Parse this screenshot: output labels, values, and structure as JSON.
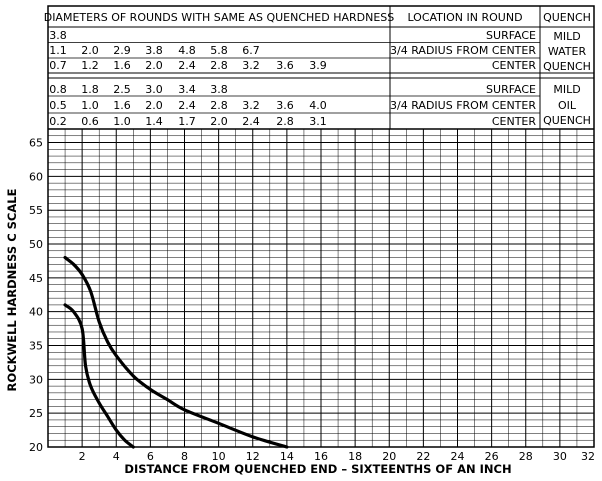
{
  "table": {
    "headers": {
      "diameters": "DIAMETERS OF ROUNDS WITH SAME AS QUENCHED HARDNESS",
      "location": "LOCATION IN ROUND",
      "quench": "QUENCH"
    },
    "groups": [
      {
        "quench_lines": [
          "MILD",
          "WATER",
          "QUENCH"
        ],
        "rows": [
          {
            "values": [
              "3.8"
            ],
            "location": "SURFACE"
          },
          {
            "values": [
              "1.1",
              "2.0",
              "2.9",
              "3.8",
              "4.8",
              "5.8",
              "6.7"
            ],
            "location": "3/4 RADIUS FROM CENTER"
          },
          {
            "values": [
              "0.7",
              "1.2",
              "1.6",
              "2.0",
              "2.4",
              "2.8",
              "3.2",
              "3.6",
              "3.9"
            ],
            "location": "CENTER"
          }
        ]
      },
      {
        "quench_lines": [
          "MILD",
          "OIL",
          "QUENCH"
        ],
        "rows": [
          {
            "values": [
              "0.8",
              "1.8",
              "2.5",
              "3.0",
              "3.4",
              "3.8"
            ],
            "location": "SURFACE"
          },
          {
            "values": [
              "0.5",
              "1.0",
              "1.6",
              "2.0",
              "2.4",
              "2.8",
              "3.2",
              "3.6",
              "4.0"
            ],
            "location": "3/4 RADIUS FROM CENTER"
          },
          {
            "values": [
              "0.2",
              "0.6",
              "1.0",
              "1.4",
              "1.7",
              "2.0",
              "2.4",
              "2.8",
              "3.1"
            ],
            "location": "CENTER"
          }
        ]
      }
    ]
  },
  "chart_data": {
    "type": "line",
    "xlabel": "DISTANCE FROM QUENCHED END – SIXTEENTHS OF AN INCH",
    "ylabel": "ROCKWELL HARDNESS C SCALE",
    "xlim": [
      0,
      32
    ],
    "ylim": [
      20,
      67
    ],
    "x_ticks": [
      "2",
      "4",
      "6",
      "8",
      "10",
      "12",
      "14",
      "16",
      "18",
      "20",
      "22",
      "24",
      "26",
      "28",
      "30",
      "32"
    ],
    "y_ticks": [
      "20",
      "25",
      "30",
      "35",
      "40",
      "45",
      "50",
      "55",
      "60",
      "65"
    ],
    "grid": true,
    "series": [
      {
        "x": [
          1,
          1.5,
          2,
          2.5,
          3,
          3.5,
          4,
          5,
          6,
          7,
          8,
          10,
          12,
          14
        ],
        "y": [
          48,
          47,
          45.5,
          43,
          38.5,
          35.5,
          33.5,
          30.5,
          28.5,
          27,
          25.5,
          23.5,
          21.5,
          20
        ]
      },
      {
        "x": [
          1,
          1.5,
          2,
          2.2,
          2.5,
          3,
          3.5,
          4,
          4.5,
          5
        ],
        "y": [
          41,
          40,
          37.5,
          32,
          29,
          26.5,
          24.5,
          22.5,
          21,
          20
        ]
      }
    ]
  }
}
